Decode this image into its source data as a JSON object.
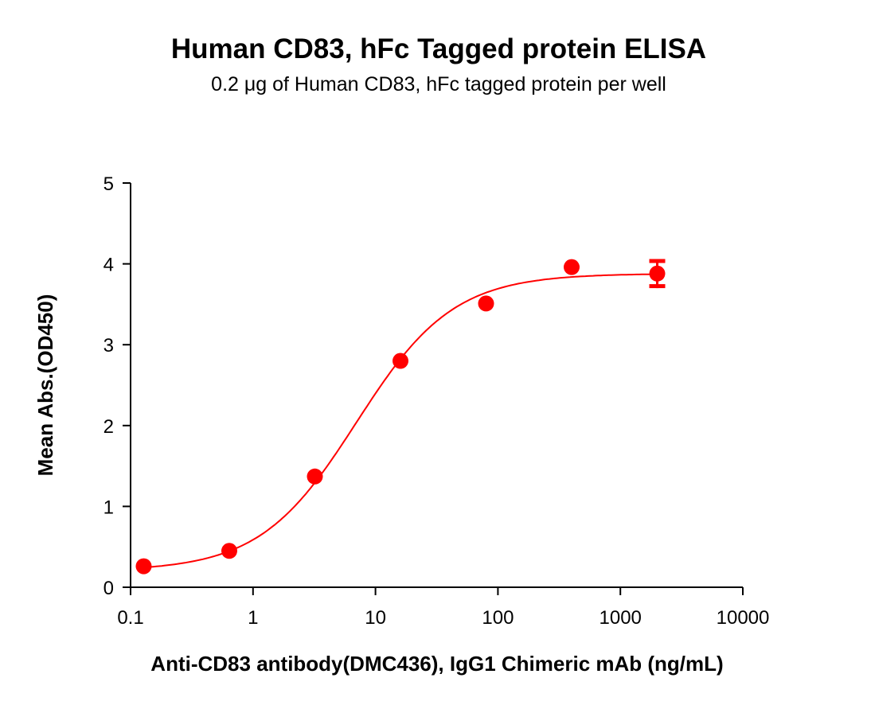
{
  "chart_data": {
    "type": "scatter",
    "title": "Human CD83, hFc Tagged protein ELISA",
    "subtitle": "0.2 μg of Human CD83, hFc tagged protein per well",
    "xlabel": "Anti-CD83 antibody(DMC436), IgG1 Chimeric mAb (ng/mL)",
    "ylabel": "Mean Abs.(OD450)",
    "xscale": "log",
    "xlim": [
      0.1,
      10000
    ],
    "ylim": [
      0,
      5
    ],
    "x_ticks": [
      "0.1",
      "1",
      "10",
      "100",
      "1000",
      "10000"
    ],
    "y_ticks": [
      "0",
      "1",
      "2",
      "3",
      "4",
      "5"
    ],
    "grid": false,
    "fit_curve": "4-parameter logistic",
    "color": "#ff0000",
    "series": [
      {
        "x": [
          0.128,
          0.64,
          3.2,
          16,
          80,
          400,
          2000
        ],
        "y": [
          0.26,
          0.45,
          1.37,
          2.8,
          3.51,
          3.96,
          3.88
        ],
        "error": [
          0,
          0,
          0,
          0,
          0,
          0,
          0.18
        ]
      }
    ]
  }
}
